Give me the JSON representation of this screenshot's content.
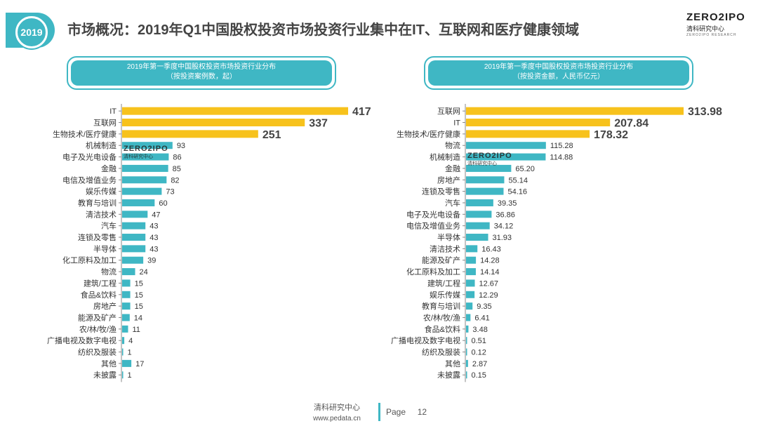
{
  "header": {
    "year_badge": "2019",
    "title": "市场概况：2019年Q1中国股权投资市场投资行业集中在IT、互联网和医疗健康领域",
    "logo": {
      "top": "ZERO2IPO",
      "mid": "清科研究中心",
      "bot": "ZERO2IPO RESEARCH"
    }
  },
  "colors": {
    "accent": "#3fb7c4",
    "highlight": "#f7c21c",
    "axis": "#888888"
  },
  "chart_data": [
    {
      "type": "bar",
      "orientation": "horizontal",
      "title": "2019年第一季度中国股权投资市场投资行业分布",
      "subtitle": "（按投资案例数，起）",
      "categories": [
        "IT",
        "互联网",
        "生物技术/医疗健康",
        "机械制造",
        "电子及光电设备",
        "金融",
        "电信及增值业务",
        "娱乐传媒",
        "教育与培训",
        "清洁技术",
        "汽车",
        "连锁及零售",
        "半导体",
        "化工原料及加工",
        "物流",
        "建筑/工程",
        "食品&饮料",
        "房地产",
        "能源及矿产",
        "农/林/牧/渔",
        "广播电视及数字电视",
        "纺织及服装",
        "其他",
        "未披露"
      ],
      "values": [
        417,
        337,
        251,
        93,
        86,
        85,
        82,
        73,
        60,
        47,
        43,
        43,
        43,
        39,
        24,
        15,
        15,
        15,
        14,
        11,
        4,
        1,
        17,
        1
      ],
      "value_labels": [
        "417",
        "337",
        "251",
        "93",
        "86",
        "85",
        "82",
        "73",
        "60",
        "47",
        "43",
        "43",
        "43",
        "39",
        "24",
        "15",
        "15",
        "15",
        "14",
        "11",
        "4",
        "1",
        "17",
        "1"
      ],
      "highlight_count": 3,
      "xlim": [
        0,
        417
      ]
    },
    {
      "type": "bar",
      "orientation": "horizontal",
      "title": "2019年第一季度中国股权投资市场投资行业分布",
      "subtitle": "（按投资金额，人民币亿元）",
      "categories": [
        "互联网",
        "IT",
        "生物技术/医疗健康",
        "物流",
        "机械制造",
        "金融",
        "房地产",
        "连锁及零售",
        "汽车",
        "电子及光电设备",
        "电信及增值业务",
        "半导体",
        "清洁技术",
        "能源及矿产",
        "化工原料及加工",
        "建筑/工程",
        "娱乐传媒",
        "教育与培训",
        "农/林/牧/渔",
        "食品&饮料",
        "广播电视及数字电视",
        "纺织及服装",
        "其他",
        "未披露"
      ],
      "values": [
        313.98,
        207.84,
        178.32,
        115.28,
        114.88,
        65.2,
        55.14,
        54.16,
        39.35,
        36.86,
        34.12,
        31.93,
        16.43,
        14.28,
        14.14,
        12.67,
        12.29,
        9.35,
        6.41,
        3.48,
        0.51,
        0.12,
        2.87,
        0.15
      ],
      "value_labels": [
        "313.98",
        "207.84",
        "178.32",
        "115.28",
        "114.88",
        "65.20",
        "55.14",
        "54.16",
        "39.35",
        "36.86",
        "34.12",
        "31.93",
        "16.43",
        "14.28",
        "14.14",
        "12.67",
        "12.29",
        "9.35",
        "6.41",
        "3.48",
        "0.51",
        "0.12",
        "2.87",
        "0.15"
      ],
      "highlight_count": 3,
      "xlim": [
        0,
        313.98
      ]
    }
  ],
  "watermarks": [
    {
      "top": "ZERO2IPO",
      "bottom": "清科研究中心"
    },
    {
      "top": "ZERO2IPO",
      "bottom": "清科研究中心"
    }
  ],
  "footer": {
    "org": "清科研究中心",
    "url": "www.pedata.cn",
    "page_label": "Page",
    "page_number": "12"
  }
}
